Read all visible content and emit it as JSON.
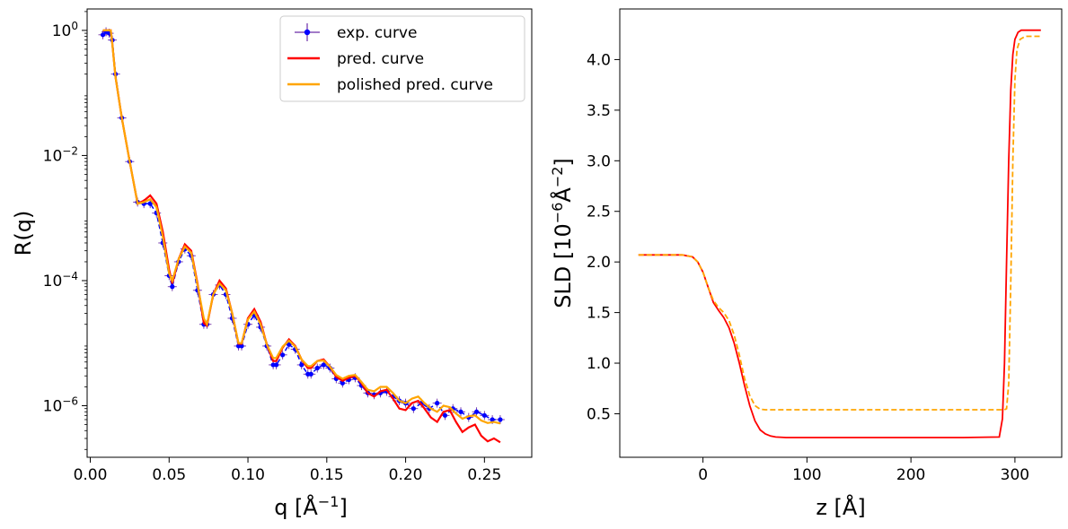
{
  "chart_data": [
    {
      "type": "line",
      "scale_y": "log",
      "xlabel": "q [Å⁻¹]",
      "ylabel": "R(q)",
      "xlim": [
        -0.002,
        0.28
      ],
      "ylim": [
        1.5e-07,
        2.2
      ],
      "x_ticks": [
        {
          "value": 0.0,
          "label": "0.00"
        },
        {
          "value": 0.05,
          "label": "0.05"
        },
        {
          "value": 0.1,
          "label": "0.10"
        },
        {
          "value": 0.15,
          "label": "0.15"
        },
        {
          "value": 0.2,
          "label": "0.20"
        },
        {
          "value": 0.25,
          "label": "0.25"
        }
      ],
      "y_ticks": [
        {
          "value": 1,
          "base": "10",
          "exp": "0"
        },
        {
          "value": 0.01,
          "base": "10",
          "exp": "−2"
        },
        {
          "value": 0.0001,
          "base": "10",
          "exp": "−4"
        },
        {
          "value": 1e-06,
          "base": "10",
          "exp": "−6"
        }
      ],
      "legend": {
        "position": "top-right",
        "entries": [
          "exp. curve",
          "pred. curve",
          "polished pred. curve"
        ]
      },
      "series": [
        {
          "name": "exp. curve",
          "color": "#0000ff",
          "marker": "dot-with-errorbars",
          "x": [
            0.008,
            0.01,
            0.012,
            0.014,
            0.016,
            0.02,
            0.025,
            0.03,
            0.034,
            0.038,
            0.042,
            0.046,
            0.05,
            0.052,
            0.056,
            0.06,
            0.064,
            0.068,
            0.072,
            0.074,
            0.078,
            0.082,
            0.086,
            0.09,
            0.094,
            0.096,
            0.1,
            0.104,
            0.108,
            0.112,
            0.116,
            0.118,
            0.122,
            0.126,
            0.13,
            0.134,
            0.138,
            0.14,
            0.144,
            0.148,
            0.152,
            0.156,
            0.16,
            0.164,
            0.168,
            0.172,
            0.176,
            0.18,
            0.184,
            0.188,
            0.192,
            0.196,
            0.2,
            0.205,
            0.21,
            0.215,
            0.22,
            0.225,
            0.23,
            0.235,
            0.24,
            0.245,
            0.25,
            0.255,
            0.26
          ],
          "y": [
            0.85,
            0.95,
            0.9,
            0.7,
            0.2,
            0.04,
            0.008,
            0.0018,
            0.0017,
            0.0017,
            0.0012,
            0.0004,
            0.00012,
            8e-05,
            0.0002,
            0.00032,
            0.00025,
            7e-05,
            2e-05,
            2e-05,
            6e-05,
            8.5e-05,
            6e-05,
            2.5e-05,
            9e-06,
            9e-06,
            2e-05,
            2.8e-05,
            1.8e-05,
            9e-06,
            4.5e-06,
            4.5e-06,
            6.5e-06,
            9.5e-06,
            8e-06,
            4.5e-06,
            3.2e-06,
            3.2e-06,
            4e-06,
            4.5e-06,
            4e-06,
            2.7e-06,
            2.3e-06,
            2.6e-06,
            2.8e-06,
            2.1e-06,
            1.6e-06,
            1.5e-06,
            1.6e-06,
            1.7e-06,
            1.4e-06,
            1.2e-06,
            1.1e-06,
            9e-07,
            1.1e-06,
            9e-07,
            1.1e-06,
            7e-07,
            9e-07,
            8e-07,
            6.5e-07,
            8e-07,
            7e-07,
            6e-07,
            6e-07
          ]
        },
        {
          "name": "pred. curve",
          "color": "#ff0000",
          "style": "solid",
          "x": [
            0.008,
            0.01,
            0.013,
            0.014,
            0.016,
            0.02,
            0.025,
            0.03,
            0.034,
            0.038,
            0.042,
            0.046,
            0.05,
            0.052,
            0.056,
            0.06,
            0.064,
            0.068,
            0.072,
            0.074,
            0.078,
            0.082,
            0.086,
            0.09,
            0.094,
            0.096,
            0.1,
            0.104,
            0.108,
            0.112,
            0.116,
            0.118,
            0.122,
            0.126,
            0.13,
            0.134,
            0.138,
            0.14,
            0.144,
            0.148,
            0.152,
            0.156,
            0.16,
            0.164,
            0.168,
            0.172,
            0.176,
            0.18,
            0.184,
            0.188,
            0.192,
            0.196,
            0.2,
            0.204,
            0.208,
            0.212,
            0.216,
            0.22,
            0.224,
            0.228,
            0.232,
            0.236,
            0.24,
            0.244,
            0.248,
            0.252,
            0.256,
            0.26
          ],
          "y": [
            1.0,
            1.0,
            1.0,
            0.6,
            0.18,
            0.04,
            0.008,
            0.0017,
            0.0019,
            0.0023,
            0.0017,
            0.0006,
            0.00015,
            9e-05,
            0.00022,
            0.00038,
            0.0003,
            9e-05,
            2.1e-05,
            1.9e-05,
            6e-05,
            0.0001,
            7.5e-05,
            3e-05,
            9.8e-06,
            9.8e-06,
            2.5e-05,
            3.5e-05,
            2.2e-05,
            9.5e-06,
            5.2e-06,
            5.2e-06,
            8.5e-06,
            1.15e-05,
            9e-06,
            5.5e-06,
            4e-06,
            4e-06,
            5.2e-06,
            5.5e-06,
            4.2e-06,
            2.9e-06,
            2.5e-06,
            2.8e-06,
            3e-06,
            2.3e-06,
            1.6e-06,
            1.4e-06,
            1.7e-06,
            1.8e-06,
            1.3e-06,
            9e-07,
            8.5e-07,
            1.1e-06,
            1.2e-06,
            9e-07,
            6.5e-07,
            5.5e-07,
            8e-07,
            8.5e-07,
            5.5e-07,
            3.8e-07,
            4.5e-07,
            5e-07,
            3.3e-07,
            2.7e-07,
            3e-07,
            2.6e-07
          ]
        },
        {
          "name": "polished pred. curve",
          "color": "#ffa500",
          "style": "solid",
          "x": [
            0.008,
            0.01,
            0.013,
            0.014,
            0.016,
            0.02,
            0.025,
            0.03,
            0.034,
            0.038,
            0.042,
            0.046,
            0.05,
            0.052,
            0.056,
            0.06,
            0.064,
            0.068,
            0.072,
            0.074,
            0.078,
            0.082,
            0.086,
            0.09,
            0.094,
            0.096,
            0.1,
            0.104,
            0.108,
            0.112,
            0.116,
            0.118,
            0.122,
            0.126,
            0.13,
            0.134,
            0.138,
            0.14,
            0.144,
            0.148,
            0.152,
            0.156,
            0.16,
            0.164,
            0.168,
            0.172,
            0.176,
            0.18,
            0.184,
            0.188,
            0.192,
            0.196,
            0.2,
            0.204,
            0.208,
            0.212,
            0.216,
            0.22,
            0.224,
            0.228,
            0.232,
            0.236,
            0.24,
            0.244,
            0.248,
            0.252,
            0.256,
            0.26
          ],
          "y": [
            1.0,
            1.0,
            1.0,
            0.6,
            0.18,
            0.04,
            0.008,
            0.0017,
            0.0018,
            0.002,
            0.0015,
            0.0005,
            0.00013,
            0.0001,
            0.00022,
            0.00035,
            0.00028,
            8.5e-05,
            2.5e-05,
            2e-05,
            6e-05,
            9e-05,
            7e-05,
            3e-05,
            1e-05,
            1e-05,
            2.4e-05,
            3.2e-05,
            2e-05,
            9.5e-06,
            5.8e-06,
            5.8e-06,
            8.8e-06,
            1.1e-05,
            8.8e-06,
            5.5e-06,
            4.3e-06,
            4.3e-06,
            5.2e-06,
            5.3e-06,
            4.2e-06,
            3.1e-06,
            2.7e-06,
            3e-06,
            3.1e-06,
            2.4e-06,
            1.8e-06,
            1.7e-06,
            2e-06,
            2e-06,
            1.6e-06,
            1.2e-06,
            1.1e-06,
            1.3e-06,
            1.4e-06,
            1.1e-06,
            9e-07,
            8e-07,
            1e-06,
            9.5e-07,
            7.5e-07,
            6.2e-07,
            6.8e-07,
            7e-07,
            5.8e-07,
            5.3e-07,
            5.5e-07,
            5.2e-07
          ]
        }
      ]
    },
    {
      "type": "line",
      "xlabel": "z [Å]",
      "ylabel": "SLD [10⁻⁶Å⁻²]",
      "xlim": [
        -80,
        345
      ],
      "ylim": [
        0.07,
        4.5
      ],
      "x_ticks": [
        {
          "value": 0,
          "label": "0"
        },
        {
          "value": 100,
          "label": "100"
        },
        {
          "value": 200,
          "label": "200"
        },
        {
          "value": 300,
          "label": "300"
        }
      ],
      "y_ticks": [
        {
          "value": 0.5,
          "label": "0.5"
        },
        {
          "value": 1.0,
          "label": "1.0"
        },
        {
          "value": 1.5,
          "label": "1.5"
        },
        {
          "value": 2.0,
          "label": "2.0"
        },
        {
          "value": 2.5,
          "label": "2.5"
        },
        {
          "value": 3.0,
          "label": "3.0"
        },
        {
          "value": 3.5,
          "label": "3.5"
        },
        {
          "value": 4.0,
          "label": "4.0"
        }
      ],
      "series": [
        {
          "color": "#ff0000",
          "style": "solid",
          "x": [
            -62,
            -20,
            -10,
            -5,
            0,
            5,
            10,
            15,
            20,
            25,
            30,
            35,
            40,
            45,
            50,
            55,
            60,
            65,
            70,
            80,
            100,
            150,
            200,
            250,
            285,
            288,
            290,
            292,
            294,
            296,
            298,
            300,
            303,
            306,
            310,
            315,
            325
          ],
          "y": [
            2.07,
            2.07,
            2.05,
            2.0,
            1.9,
            1.75,
            1.6,
            1.52,
            1.45,
            1.35,
            1.2,
            1.0,
            0.78,
            0.58,
            0.43,
            0.34,
            0.3,
            0.28,
            0.27,
            0.265,
            0.265,
            0.265,
            0.265,
            0.265,
            0.27,
            0.45,
            1.0,
            2.0,
            3.0,
            3.7,
            4.05,
            4.2,
            4.27,
            4.29,
            4.29,
            4.29,
            4.29
          ]
        },
        {
          "color": "#ffa500",
          "style": "dashed",
          "x": [
            -62,
            -20,
            -10,
            -5,
            0,
            5,
            10,
            15,
            20,
            25,
            30,
            35,
            40,
            45,
            50,
            55,
            60,
            65,
            70,
            80,
            100,
            150,
            200,
            250,
            290,
            292,
            294,
            296,
            298,
            300,
            302,
            305,
            310,
            315,
            325
          ],
          "y": [
            2.07,
            2.07,
            2.05,
            2.0,
            1.9,
            1.75,
            1.62,
            1.55,
            1.5,
            1.42,
            1.28,
            1.08,
            0.85,
            0.68,
            0.58,
            0.545,
            0.54,
            0.54,
            0.54,
            0.54,
            0.54,
            0.54,
            0.54,
            0.54,
            0.54,
            0.55,
            0.8,
            1.8,
            3.0,
            3.8,
            4.1,
            4.2,
            4.23,
            4.23,
            4.23
          ]
        }
      ]
    }
  ]
}
